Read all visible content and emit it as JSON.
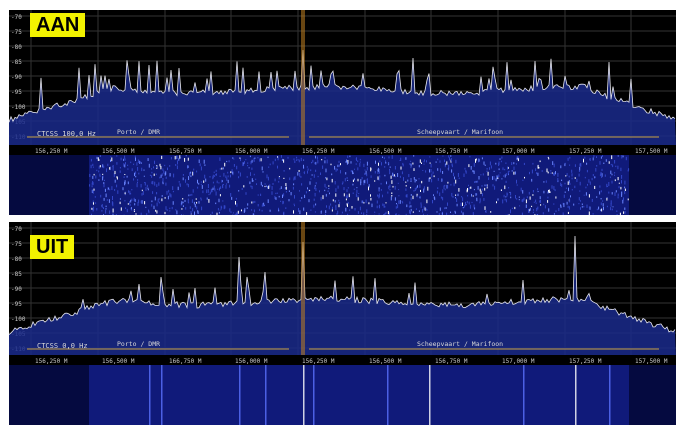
{
  "panels": [
    {
      "id": "top",
      "badge": "AAN",
      "y_ticks": [
        "-70",
        "-75",
        "-80",
        "-85",
        "-90",
        "-95",
        "-100",
        "-105",
        "-110"
      ],
      "x_ticks": [
        "156,250 M",
        "156,500 M",
        "156,750 M",
        "156,000 M",
        "156,250 M",
        "156,500 M",
        "156,750 M",
        "157,000 M",
        "157,250 M",
        "157,500 M"
      ],
      "ctcss": "CTCSS 100,0 Hz",
      "band_left": "Porto / DMR",
      "band_right": "Scheepvaart / Marifoon"
    },
    {
      "id": "bottom",
      "badge": "UIT",
      "y_ticks": [
        "-70",
        "-75",
        "-80",
        "-85",
        "-90",
        "-95",
        "-100",
        "-105",
        "-110"
      ],
      "x_ticks": [
        "156,250 M",
        "156,500 M",
        "166,750 M",
        "156,000 M",
        "156,250 M",
        "156,500 M",
        "156,750 M",
        "157,000 M",
        "157,250 M",
        "157,500 M"
      ],
      "ctcss": "CTCSS 0,0 Hz",
      "band_left": "Porto / DMR",
      "band_right": "Scheepvaart / Marifoon"
    }
  ],
  "colors": {
    "background": "#000000",
    "spectrum_fill": "#1a2a8c",
    "trace": "#e8e8f0",
    "grid": "#333333",
    "badge_bg": "#f2f200",
    "marker": "#c08020",
    "band_line": "#c8a040",
    "waterfall_bg": "#101a7a"
  }
}
